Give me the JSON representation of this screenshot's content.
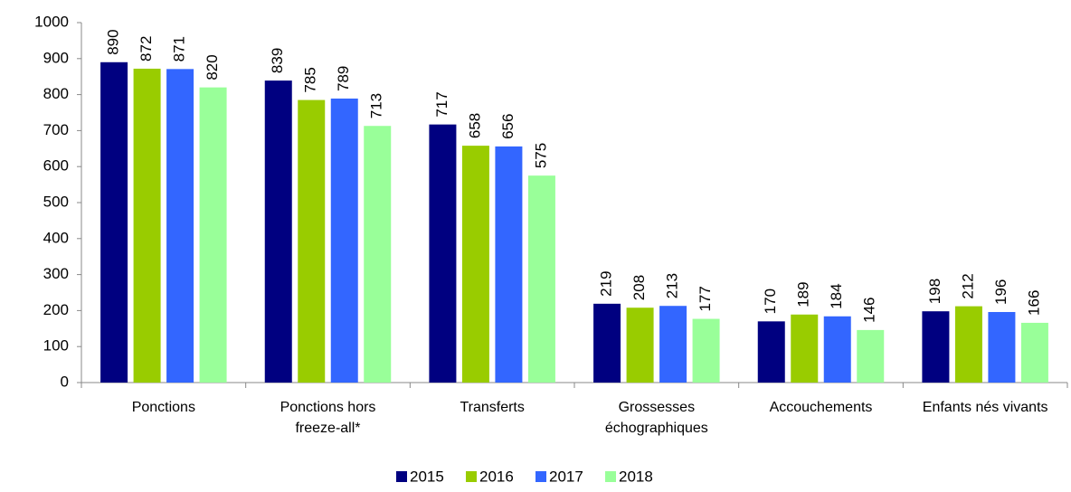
{
  "chart_data": {
    "type": "bar",
    "categories": [
      "Ponctions",
      "Ponctions hors freeze-all*",
      "Transferts",
      "Grossesses échographiques",
      "Accouchements",
      "Enfants nés vivants"
    ],
    "series": [
      {
        "name": "2015",
        "color": "#000080",
        "values": [
          890,
          839,
          717,
          219,
          170,
          198
        ]
      },
      {
        "name": "2016",
        "color": "#99cc00",
        "values": [
          872,
          785,
          658,
          208,
          189,
          212
        ]
      },
      {
        "name": "2017",
        "color": "#3366ff",
        "values": [
          871,
          789,
          656,
          213,
          184,
          196
        ]
      },
      {
        "name": "2018",
        "color": "#99ff99",
        "values": [
          820,
          713,
          575,
          177,
          146,
          166
        ]
      }
    ],
    "ylim": [
      0,
      1000
    ],
    "yticks": [
      0,
      100,
      200,
      300,
      400,
      500,
      600,
      700,
      800,
      900,
      1000
    ],
    "grid": false,
    "legend": "bottom"
  }
}
